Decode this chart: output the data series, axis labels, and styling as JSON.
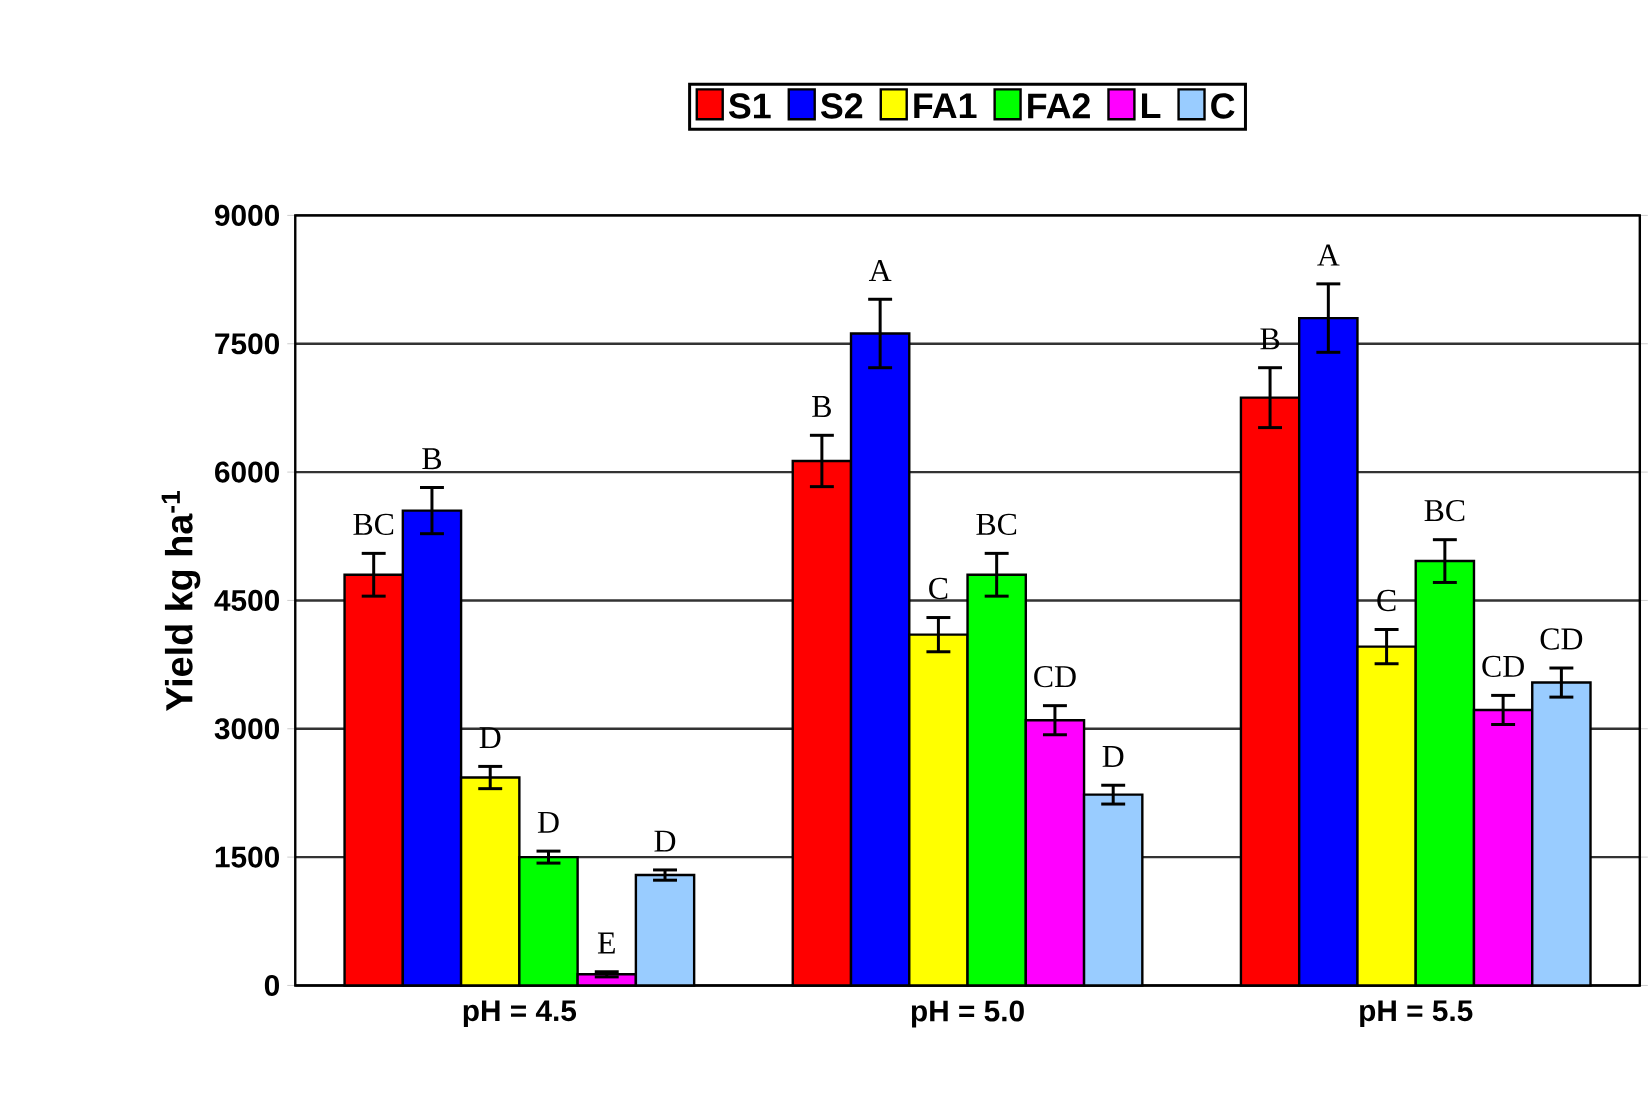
{
  "chart_data": {
    "type": "bar",
    "ylabel": "Yield kg ha$^{-1}$",
    "categories": [
      "pH = 4.5",
      "pH = 5.0",
      "pH = 5.5"
    ],
    "series": [
      {
        "name": "S1",
        "color": "#ff0000",
        "values": [
          4800,
          6130,
          6870
        ],
        "errors": [
          250,
          300,
          350
        ]
      },
      {
        "name": "S2",
        "color": "#0000ff",
        "values": [
          5550,
          7620,
          7800
        ],
        "errors": [
          270,
          400,
          400
        ]
      },
      {
        "name": "FA1",
        "color": "#ffff00",
        "values": [
          2430,
          4100,
          3960
        ],
        "errors": [
          130,
          200,
          200
        ]
      },
      {
        "name": "FA2",
        "color": "#00ff00",
        "values": [
          1500,
          4800,
          4960
        ],
        "errors": [
          70,
          250,
          250
        ]
      },
      {
        "name": "L",
        "color": "#ff00ff",
        "values": [
          130,
          3100,
          3220
        ],
        "errors": [
          30,
          170,
          170
        ]
      },
      {
        "name": "C",
        "color": "#99ccff",
        "values": [
          1290,
          2230,
          3540
        ],
        "errors": [
          60,
          110,
          170
        ]
      }
    ],
    "annotations": [
      "BC",
      "B",
      "D",
      "D",
      "E",
      "D",
      "B",
      "A",
      "C",
      "BC",
      "CD",
      "D",
      "B",
      "A",
      "C",
      "BC",
      "CD",
      "CD"
    ],
    "ylim": [
      0,
      9000
    ],
    "yticks": [
      0,
      1500,
      3000,
      4500,
      6000,
      7500,
      9000
    ],
    "grid": "y",
    "legend": "top"
  }
}
